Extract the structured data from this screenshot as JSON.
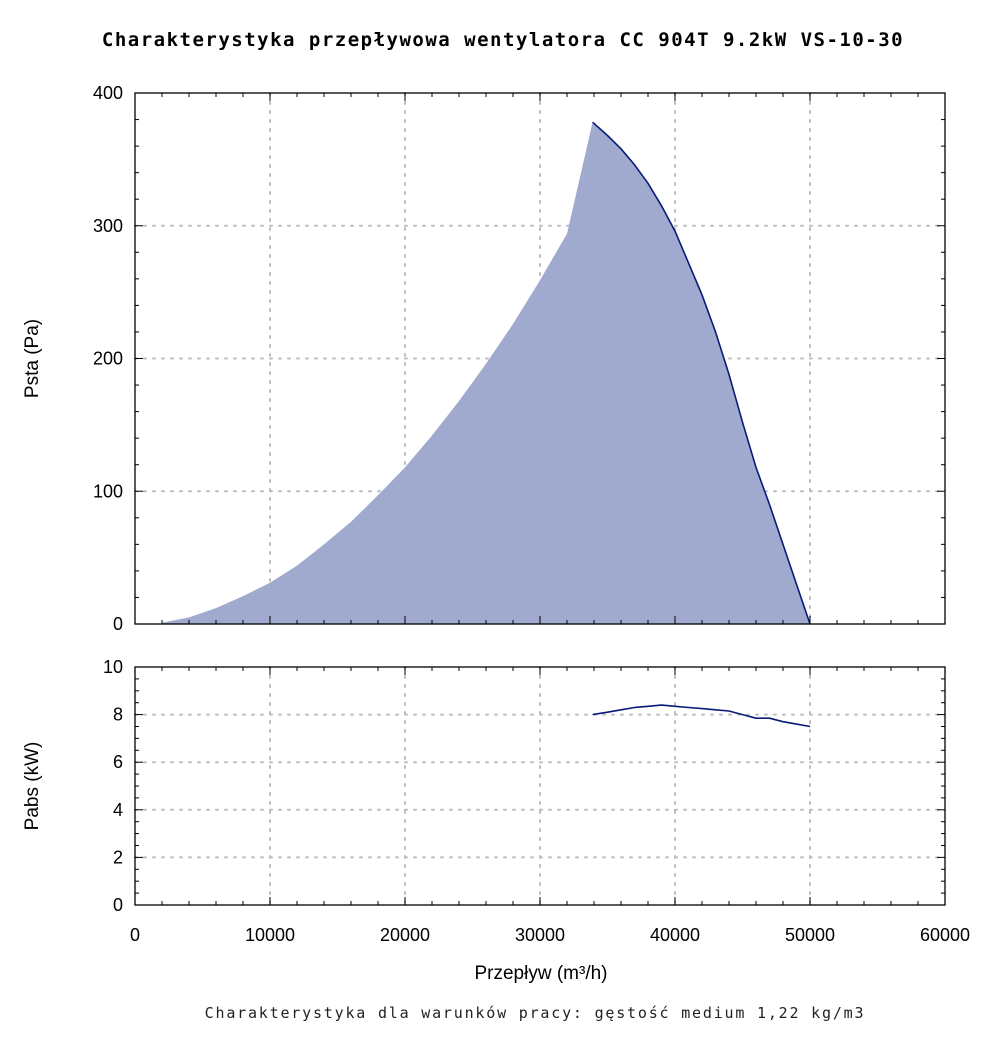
{
  "chart": {
    "title": "Charakterystyka przepływowa wentylatora CC 904T 9.2kW VS-10-30",
    "footnote": "Charakterystyka dla warunków pracy: gęstość medium 1,22 kg/m3",
    "xlabel": "Przepływ (m³/h)"
  },
  "colors": {
    "fill": "#a0aacf",
    "line": "#0a1a78",
    "grid": "#bdbdbd"
  },
  "chart_data": [
    {
      "type": "area",
      "ylabel": "Psta (Pa)",
      "xlim": [
        0,
        60000
      ],
      "ylim": [
        0,
        400
      ],
      "x_ticks": [
        0,
        10000,
        20000,
        30000,
        40000,
        50000,
        60000
      ],
      "y_ticks": [
        0,
        100,
        200,
        300,
        400
      ],
      "grid": true,
      "series": [
        {
          "x": [
            2000,
            4000,
            6000,
            8000,
            10000,
            12000,
            14000,
            16000,
            18000,
            20000,
            22000,
            24000,
            26000,
            28000,
            30000,
            32000,
            33900,
            35000,
            36000,
            37000,
            38000,
            39000,
            40000,
            41000,
            42000,
            43000,
            44000,
            45000,
            46000,
            47000,
            48000,
            49000,
            50000
          ],
          "y": [
            1,
            5,
            12,
            21,
            31,
            44,
            60,
            77,
            97,
            118,
            142,
            168,
            196,
            226,
            259,
            294,
            378,
            368,
            358,
            346,
            332,
            315,
            296,
            272,
            248,
            220,
            188,
            152,
            118,
            90,
            60,
            30,
            0
          ]
        }
      ]
    },
    {
      "type": "line",
      "ylabel": "Pabs (kW)",
      "xlim": [
        0,
        60000
      ],
      "ylim": [
        0,
        10
      ],
      "x_ticks": [
        0,
        10000,
        20000,
        30000,
        40000,
        50000,
        60000
      ],
      "y_ticks": [
        0,
        2,
        4,
        6,
        8,
        10
      ],
      "grid": true,
      "series": [
        {
          "x": [
            33900,
            35000,
            36000,
            37000,
            38000,
            39000,
            40000,
            41000,
            42000,
            43000,
            44000,
            45000,
            46000,
            47000,
            48000,
            49000,
            50000
          ],
          "y": [
            8.0,
            8.1,
            8.2,
            8.3,
            8.35,
            8.4,
            8.35,
            8.3,
            8.25,
            8.2,
            8.15,
            8.0,
            7.85,
            7.85,
            7.7,
            7.6,
            7.5
          ]
        }
      ]
    }
  ]
}
